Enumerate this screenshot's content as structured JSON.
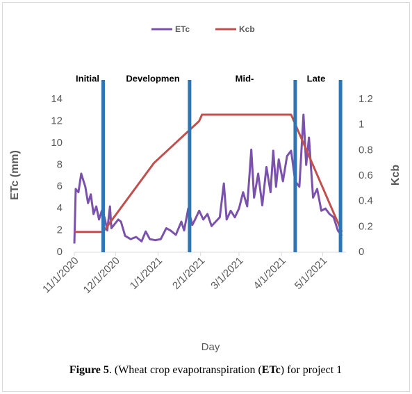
{
  "chart_data": {
    "type": "line",
    "x_label": "Day",
    "y_label": "ETc (mm)",
    "y2_label": "Kcb",
    "xlim": [
      "11/1/2020",
      "5/18/2021"
    ],
    "xticks": [
      "11/1/2020",
      "12/1/2020",
      "1/1/2021",
      "2/1/2021",
      "3/1/2021",
      "4/1/2021",
      "5/1/2021"
    ],
    "ylim": [
      0,
      14
    ],
    "yticks": [
      0,
      2,
      4,
      6,
      8,
      10,
      12,
      14
    ],
    "y2lim": [
      0,
      1.2
    ],
    "y2ticks": [
      0,
      0.2,
      0.4,
      0.6,
      0.8,
      1,
      1.2
    ],
    "legend": "top",
    "series": [
      {
        "name": "ETc",
        "color": "#7b52ab",
        "x": [
          "11/1/2020",
          "11/2/2020",
          "11/4/2020",
          "11/6/2020",
          "11/9/2020",
          "11/11/2020",
          "11/13/2020",
          "11/15/2020",
          "11/17/2020",
          "11/19/2020",
          "11/21/2020",
          "11/23/2020",
          "11/25/2020",
          "11/27/2020",
          "11/28/2020",
          "12/3/2020",
          "12/5/2020",
          "12/8/2020",
          "12/12/2020",
          "12/16/2020",
          "12/20/2020",
          "12/23/2020",
          "12/26/2020",
          "12/30/2020",
          "1/3/2021",
          "1/7/2021",
          "1/10/2021",
          "1/14/2021",
          "1/18/2021",
          "1/20/2021",
          "1/23/2021",
          "1/26/2021",
          "1/28/2021",
          "1/31/2021",
          "2/3/2021",
          "2/6/2021",
          "2/9/2021",
          "2/12/2021",
          "2/15/2021",
          "2/18/2021",
          "2/20/2021",
          "2/23/2021",
          "2/26/2021",
          "3/1/2021",
          "3/4/2021",
          "3/7/2021",
          "3/10/2021",
          "3/12/2021",
          "3/15/2021",
          "3/18/2021",
          "3/21/2021",
          "3/24/2021",
          "3/26/2021",
          "3/28/2021",
          "3/30/2021",
          "4/2/2021",
          "4/5/2021",
          "4/8/2021",
          "4/11/2021",
          "4/14/2021",
          "4/17/2021",
          "4/19/2021",
          "4/21/2021",
          "4/24/2021",
          "4/27/2021",
          "4/30/2021",
          "5/3/2021",
          "5/6/2021",
          "5/9/2021",
          "5/12/2021",
          "5/15/2021"
        ],
        "values": [
          0.8,
          5.8,
          5.5,
          7.2,
          6.0,
          4.5,
          5.3,
          3.5,
          4.2,
          3.0,
          3.8,
          3.2,
          2.0,
          4.2,
          2.2,
          3.0,
          2.8,
          1.5,
          1.2,
          1.4,
          1.0,
          1.9,
          1.2,
          1.1,
          1.2,
          2.2,
          2.0,
          1.6,
          2.8,
          2.0,
          4.0,
          2.5,
          3.0,
          3.8,
          3.0,
          3.5,
          2.4,
          2.8,
          3.2,
          6.3,
          3.0,
          3.8,
          3.2,
          4.0,
          5.5,
          4.2,
          9.4,
          5.0,
          7.2,
          4.3,
          7.8,
          5.5,
          9.3,
          6.0,
          8.5,
          6.5,
          8.8,
          9.3,
          6.5,
          6.0,
          12.6,
          8.0,
          10.5,
          5.0,
          5.8,
          3.8,
          4.0,
          3.5,
          3.2,
          2.0,
          1.5
        ]
      },
      {
        "name": "Kcb",
        "color": "#c0504d",
        "axis": "y2",
        "x": [
          "11/1/2020",
          "11/22/2020",
          "12/29/2020",
          "1/31/2021",
          "2/2/2021",
          "4/8/2021",
          "4/10/2021",
          "5/15/2021"
        ],
        "values": [
          0.16,
          0.16,
          0.7,
          1.03,
          1.08,
          1.08,
          1.03,
          0.16
        ]
      }
    ],
    "stage_color": "#2e75b6",
    "stage_lines": [
      "11/22/2020",
      "1/24/2021",
      "4/11/2021",
      "5/14/2021"
    ],
    "stage_labels": [
      "Initial",
      "Developmen",
      "Mid-",
      "Late"
    ],
    "caption": [
      {
        "text": "Figure 5",
        "bold": true
      },
      {
        "text": ". (Wheat crop evapotranspiration (",
        "bold": false
      },
      {
        "text": "ETc",
        "bold": true
      },
      {
        "text": ") for project 1",
        "bold": false
      }
    ]
  }
}
